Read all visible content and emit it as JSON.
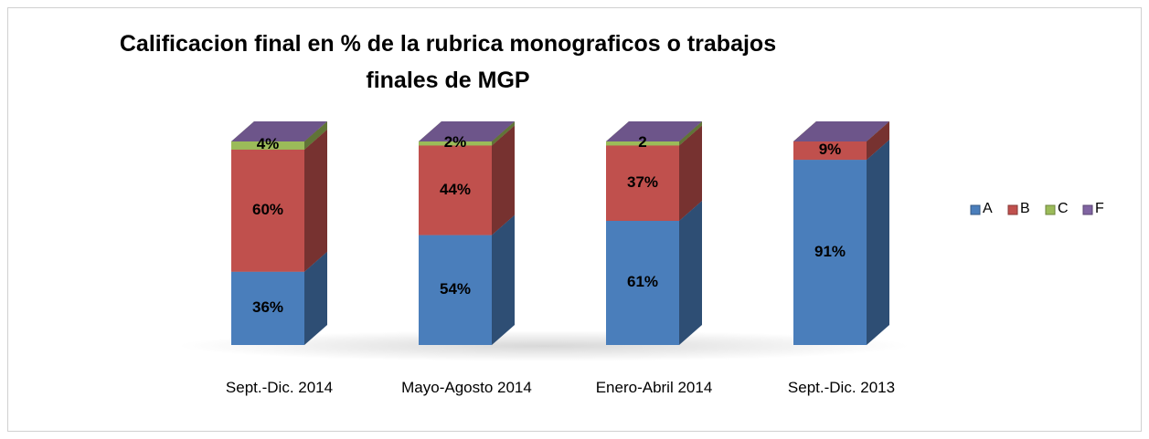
{
  "chart_data": {
    "type": "bar",
    "stacked": true,
    "title": "Calificacion final en % de la rubrica monograficos o trabajos finales de MGP",
    "categories": [
      "Sept.-Dic. 2014",
      "Mayo-Agosto 2014",
      "Enero-Abril 2014",
      "Sept.-Dic. 2013"
    ],
    "series": [
      {
        "name": "A",
        "color": "#4a7ebb",
        "values": [
          36,
          54,
          61,
          91
        ],
        "value_labels": [
          "36%",
          "54%",
          "61%",
          "91%"
        ]
      },
      {
        "name": "B",
        "color": "#c0504d",
        "values": [
          60,
          44,
          37,
          9
        ],
        "value_labels": [
          "60%",
          "44%",
          "37%",
          "9%"
        ]
      },
      {
        "name": "C",
        "color": "#9bbb59",
        "values": [
          4,
          2,
          2,
          0
        ],
        "value_labels": [
          "4%",
          "2%",
          "2",
          null
        ]
      },
      {
        "name": "F",
        "color": "#8064a2",
        "values": [
          0,
          0,
          0,
          0
        ]
      }
    ],
    "legend": "right"
  }
}
